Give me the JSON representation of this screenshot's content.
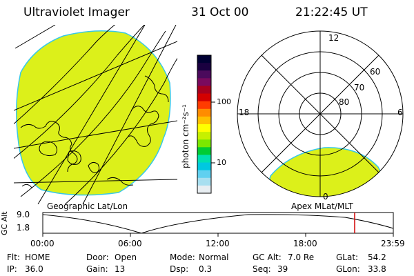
{
  "header": {
    "title": "Ultraviolet Imager",
    "date": "31 Oct 00",
    "time": "21:22:45 UT"
  },
  "left_panel": {
    "label": "Geographic Lat/Lon"
  },
  "colorbar": {
    "unit_label": "photon cm⁻²s⁻¹",
    "ticks": [
      "100",
      "10"
    ],
    "colors": [
      "#000033",
      "#1a0040",
      "#4b0a5c",
      "#7a0a5e",
      "#a8001e",
      "#d40000",
      "#ff3b00",
      "#ff8c00",
      "#ffc000",
      "#ffff00",
      "#c6f000",
      "#7ce800",
      "#00cc33",
      "#00e0b0",
      "#00c8e0",
      "#60d0f0",
      "#a8dff0",
      "#e8eef2"
    ],
    "fill_color": "#dcf01a"
  },
  "polar_panel": {
    "label": "Apex MLat/MLT",
    "mlt_labels": [
      "12",
      "18",
      "6",
      "0"
    ],
    "lat_labels": [
      "60",
      "70",
      "80"
    ]
  },
  "altitude_plot": {
    "ylabel": "GC Alt",
    "ymax_label": "9.0",
    "ymin_label": "1.8",
    "x_ticks": [
      "00:00",
      "06:00",
      "12:00",
      "18:00",
      "23:59"
    ],
    "cursor_time": "21:22",
    "cursor_color": "#d00000"
  },
  "status": {
    "row1": [
      {
        "key": "Flt:",
        "value": "HOME"
      },
      {
        "key": "Door:",
        "value": "Open"
      },
      {
        "key": "Mode:",
        "value": "Normal"
      },
      {
        "key": "GC Alt:",
        "value": "7.0 Re"
      },
      {
        "key": "GLat:",
        "value": "54.2"
      }
    ],
    "row2": [
      {
        "key": "IP:",
        "value": "36.0"
      },
      {
        "key": "Gain:",
        "value": "13"
      },
      {
        "key": "Dsp:",
        "value": "0.3"
      },
      {
        "key": "Seq:",
        "value": "39"
      },
      {
        "key": "GLon:",
        "value": "33.8"
      }
    ]
  }
}
